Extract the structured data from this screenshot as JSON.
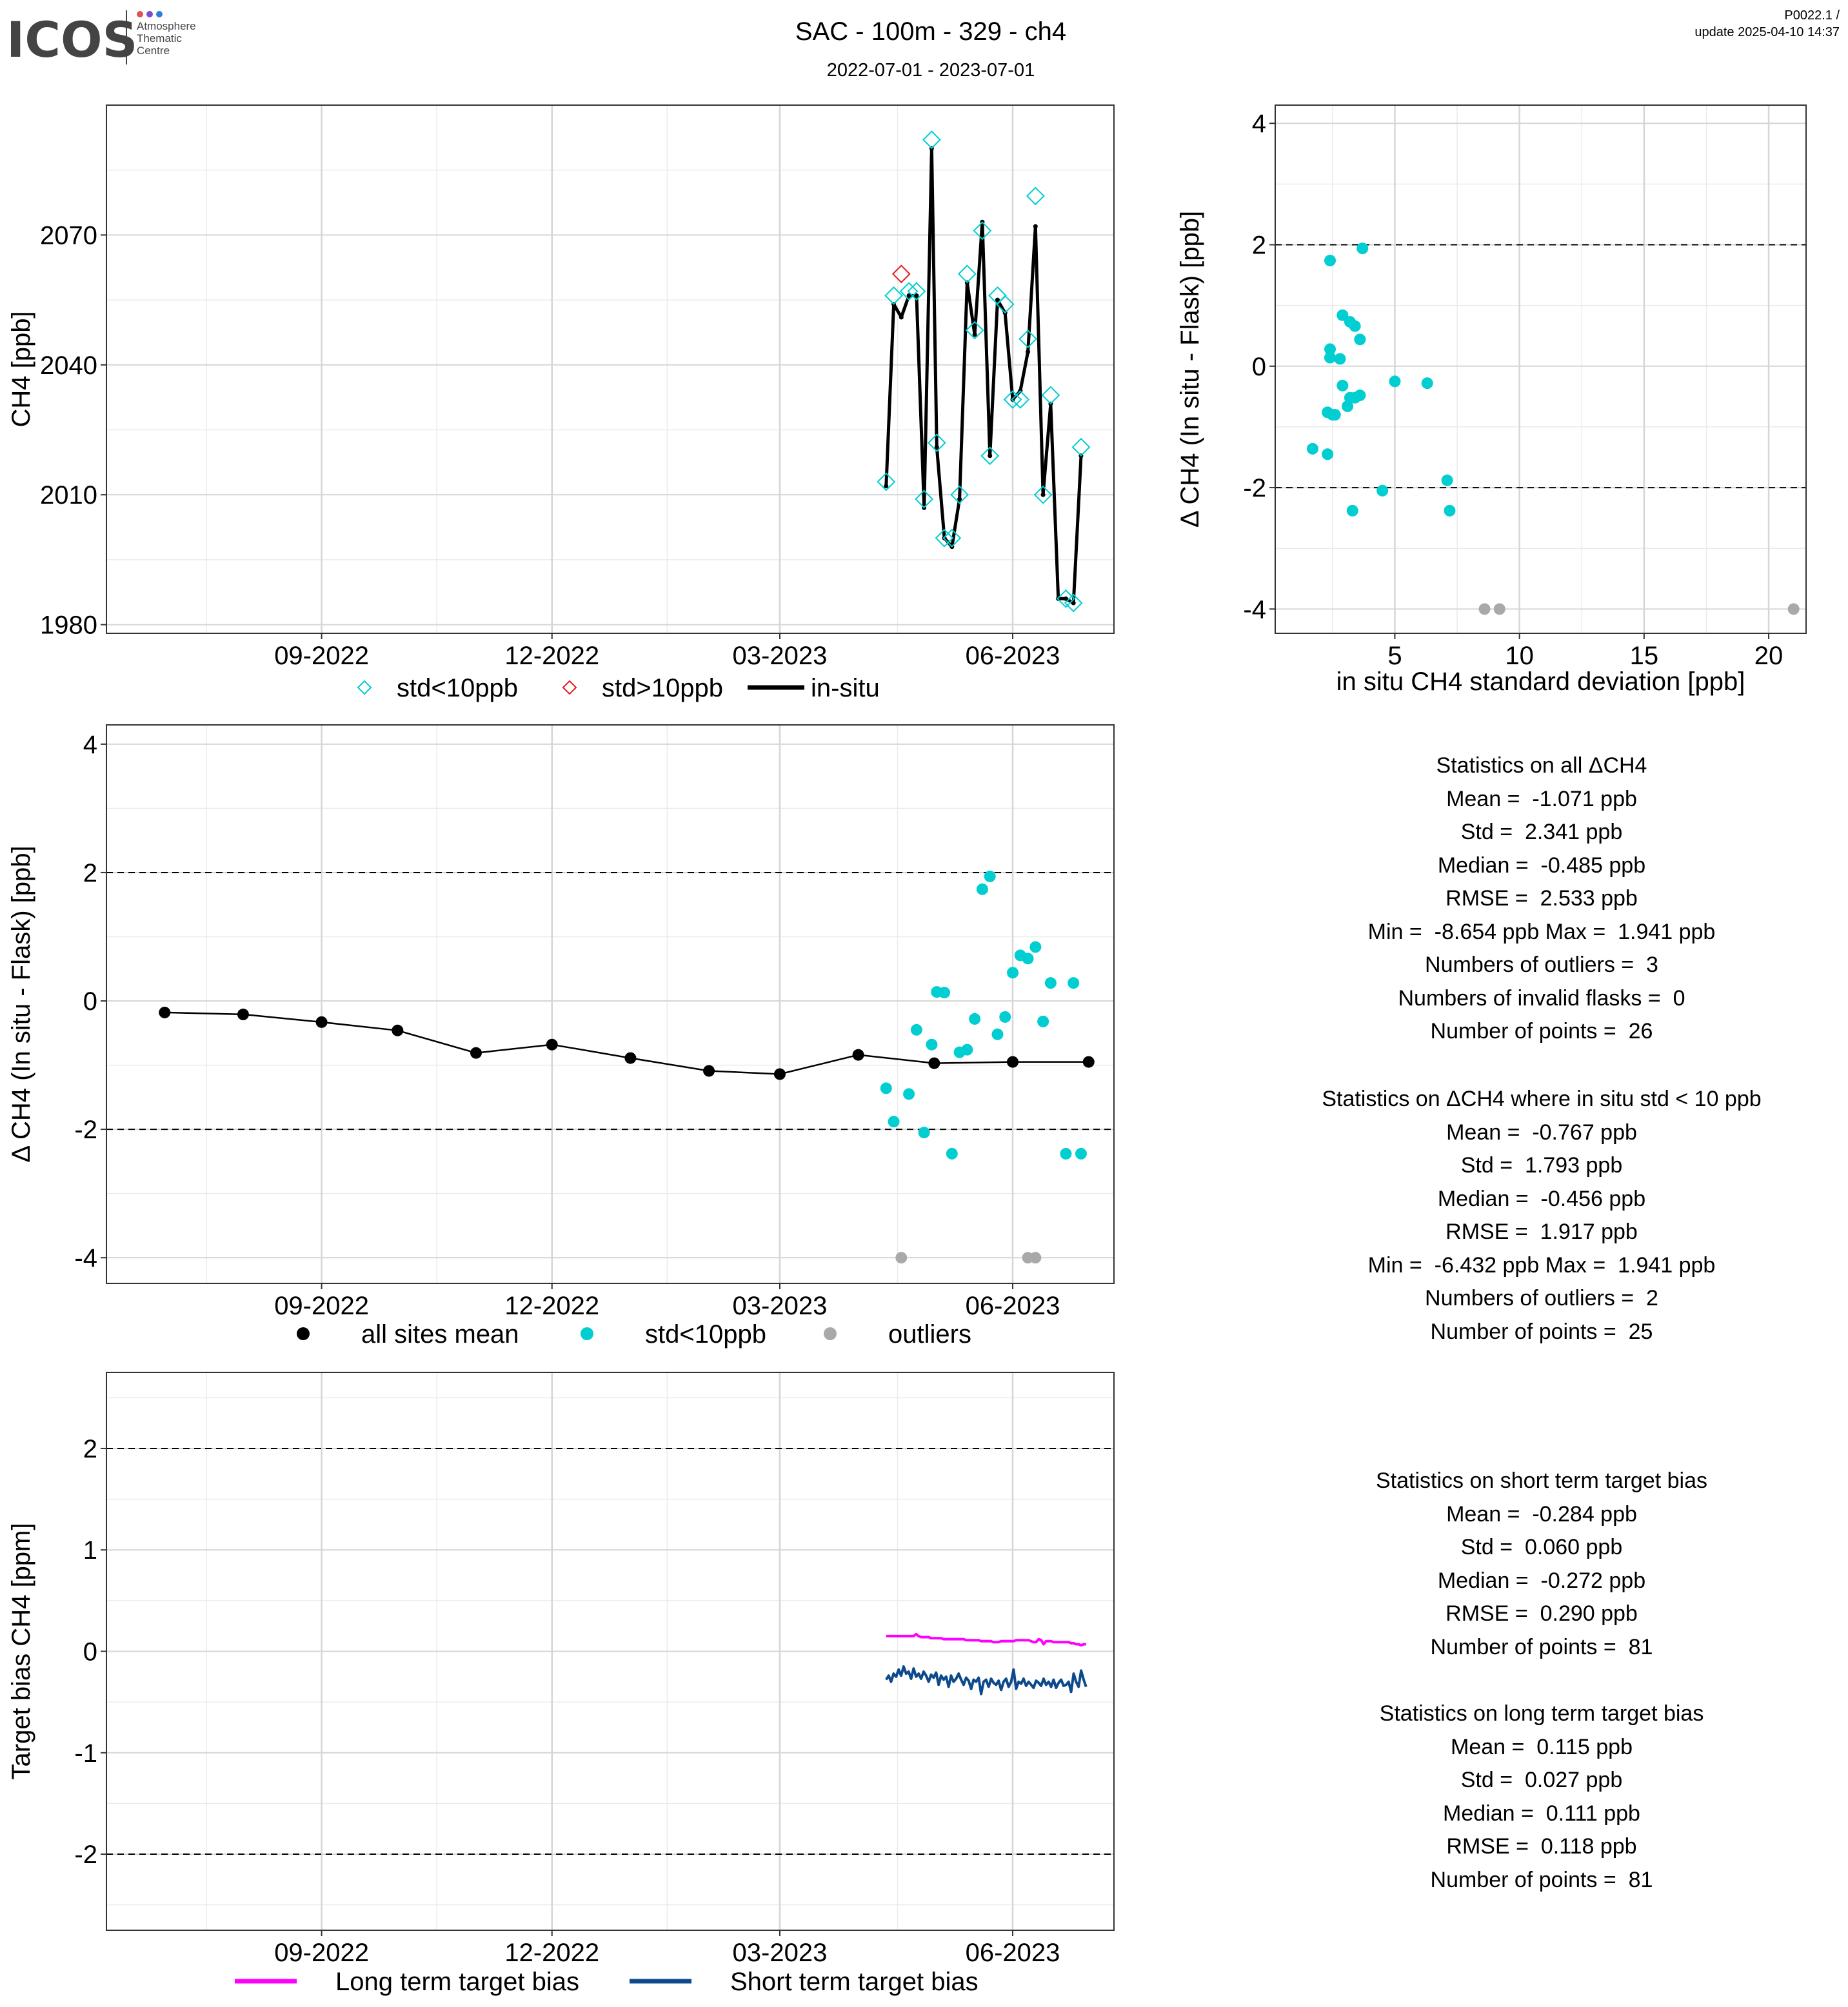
{
  "header": {
    "logo_text": "ICOS",
    "logo_sub": [
      "Atmosphere",
      "Thematic",
      "Centre"
    ],
    "title": "SAC - 100m - 329 - ch4",
    "subtitle": "2022-07-01 - 2023-07-01",
    "version": "P0022.1 /",
    "update": "update  2025-04-10 14:37"
  },
  "colors": {
    "cyan": "#00CED1",
    "red": "#E41A1C",
    "grey": "#A9A9A9",
    "magenta": "#FF00FF",
    "navy": "#0D4A8C",
    "black": "#000000"
  },
  "chart_data": [
    {
      "id": "timeseries",
      "type": "line",
      "ylabel": "CH4 [ppb]",
      "xlabel": "",
      "x_domain": [
        "2022-06-08",
        "2023-07-11"
      ],
      "ylim": [
        1978,
        2100
      ],
      "yticks": [
        1980,
        2010,
        2040,
        2070
      ],
      "xticks": [
        {
          "date": "2022-09-01",
          "label": "09-2022"
        },
        {
          "date": "2022-12-01",
          "label": "12-2022"
        },
        {
          "date": "2023-03-01",
          "label": "03-2023"
        },
        {
          "date": "2023-06-01",
          "label": "06-2023"
        }
      ],
      "grid": true,
      "legend": {
        "position": "bottom",
        "items": [
          {
            "label": "std<10ppb",
            "marker": "diamond",
            "color": "#00CED1"
          },
          {
            "label": "std>10ppb",
            "marker": "diamond",
            "color": "#E41A1C"
          },
          {
            "label": "in-situ",
            "marker": "line",
            "color": "#000000"
          }
        ]
      },
      "insitu": {
        "name": "in-situ",
        "x": [
          "2023-04-12",
          "2023-04-15",
          "2023-04-18",
          "2023-04-21",
          "2023-04-24",
          "2023-04-27",
          "2023-04-30",
          "2023-05-02",
          "2023-05-05",
          "2023-05-08",
          "2023-05-11",
          "2023-05-14",
          "2023-05-17",
          "2023-05-20",
          "2023-05-23",
          "2023-05-26",
          "2023-05-29",
          "2023-06-01",
          "2023-06-04",
          "2023-06-07",
          "2023-06-10",
          "2023-06-13",
          "2023-06-16",
          "2023-06-19",
          "2023-06-22",
          "2023-06-25",
          "2023-06-28"
        ],
        "y": [
          2012,
          2054,
          2051,
          2056,
          2056,
          2007,
          2090,
          2021,
          2000,
          1998,
          2009,
          2059,
          2047,
          2073,
          2019,
          2055,
          2052,
          2032,
          2034,
          2043,
          2072,
          2010,
          2031,
          1986,
          1986,
          1985,
          2019
        ]
      },
      "flask_ok": {
        "name": "std<10ppb",
        "x": [
          "2023-04-12",
          "2023-04-15",
          "2023-04-21",
          "2023-04-24",
          "2023-04-27",
          "2023-04-30",
          "2023-05-02",
          "2023-05-05",
          "2023-05-08",
          "2023-05-11",
          "2023-05-14",
          "2023-05-17",
          "2023-05-20",
          "2023-05-23",
          "2023-05-26",
          "2023-05-29",
          "2023-06-01",
          "2023-06-04",
          "2023-06-07",
          "2023-06-10",
          "2023-06-13",
          "2023-06-16",
          "2023-06-22",
          "2023-06-25",
          "2023-06-28"
        ],
        "y": [
          2013,
          2056,
          2057,
          2057,
          2009,
          2092,
          2022,
          2000,
          2000,
          2010,
          2061,
          2048,
          2071,
          2019,
          2056,
          2054,
          2032,
          2032,
          2046,
          2079,
          2010,
          2033,
          1986,
          1985,
          2021
        ]
      },
      "flask_bad": {
        "name": "std>10ppb",
        "x": [
          "2023-04-18"
        ],
        "y": [
          2061
        ]
      }
    },
    {
      "id": "scatter_std",
      "type": "scatter",
      "xlabel": "in situ CH4 standard deviation [ppb]",
      "ylabel": "Δ CH4 (In situ - Flask) [ppb]",
      "xlim": [
        0.2,
        21.5
      ],
      "ylim": [
        -4.4,
        4.3
      ],
      "xticks": [
        5,
        10,
        15,
        20
      ],
      "yticks": [
        -4,
        -2,
        0,
        2,
        4
      ],
      "hlines": [
        2,
        -2
      ],
      "grid": true,
      "points_ok": {
        "x": [
          2.4,
          3.7,
          2.9,
          3.2,
          3.4,
          2.4,
          3.6,
          2.8,
          2.4,
          2.5,
          2.9,
          5.0,
          6.3,
          3.6,
          3.4,
          3.1,
          2.3,
          2.6,
          1.7,
          2.3,
          3.3,
          4.5,
          7.1,
          7.2,
          3.2
        ],
        "y": [
          1.74,
          1.94,
          0.84,
          0.73,
          0.66,
          0.28,
          0.44,
          0.12,
          0.14,
          -0.8,
          -0.32,
          -0.25,
          -0.28,
          -0.48,
          -0.52,
          -0.66,
          -0.76,
          -0.8,
          -1.36,
          -1.45,
          -2.38,
          -2.05,
          -1.88,
          -2.38,
          -0.52
        ]
      },
      "points_outlier": {
        "x": [
          8.6,
          9.2,
          21.0
        ],
        "y": [
          -4,
          -4,
          -4
        ]
      }
    },
    {
      "id": "delta_time",
      "type": "scatter",
      "ylabel": "Δ CH4 (In situ - Flask) [ppb]",
      "xlabel": "",
      "x_domain": [
        "2022-06-08",
        "2023-07-11"
      ],
      "ylim": [
        -4.4,
        4.3
      ],
      "yticks": [
        -4,
        -2,
        0,
        2,
        4
      ],
      "hlines": [
        2,
        -2
      ],
      "xticks": [
        {
          "date": "2022-09-01",
          "label": "09-2022"
        },
        {
          "date": "2022-12-01",
          "label": "12-2022"
        },
        {
          "date": "2023-03-01",
          "label": "03-2023"
        },
        {
          "date": "2023-06-01",
          "label": "06-2023"
        }
      ],
      "grid": true,
      "legend": {
        "position": "bottom",
        "items": [
          {
            "label": "all sites mean",
            "marker": "dot",
            "color": "#000000"
          },
          {
            "label": "std<10ppb",
            "marker": "dot",
            "color": "#00CED1"
          },
          {
            "label": "outliers",
            "marker": "dot",
            "color": "#A9A9A9"
          }
        ]
      },
      "mean": {
        "name": "all sites mean",
        "x": [
          "2022-07-01",
          "2022-08-01",
          "2022-09-01",
          "2022-10-01",
          "2022-11-01",
          "2022-12-01",
          "2023-01-01",
          "2023-02-01",
          "2023-03-01",
          "2023-04-01",
          "2023-05-01",
          "2023-06-01",
          "2023-07-01"
        ],
        "y": [
          -0.18,
          -0.21,
          -0.33,
          -0.46,
          -0.81,
          -0.68,
          -0.89,
          -1.09,
          -1.14,
          -0.84,
          -0.97,
          -0.95,
          -0.95
        ]
      },
      "ok": {
        "name": "std<10ppb",
        "x": [
          "2023-04-12",
          "2023-04-15",
          "2023-04-21",
          "2023-04-24",
          "2023-04-27",
          "2023-04-30",
          "2023-05-02",
          "2023-05-05",
          "2023-05-08",
          "2023-05-11",
          "2023-05-14",
          "2023-05-17",
          "2023-05-20",
          "2023-05-23",
          "2023-05-26",
          "2023-05-29",
          "2023-06-01",
          "2023-06-04",
          "2023-06-07",
          "2023-06-10",
          "2023-06-13",
          "2023-06-16",
          "2023-06-22",
          "2023-06-25",
          "2023-06-28"
        ],
        "y": [
          -1.36,
          -1.88,
          -1.45,
          -0.45,
          -2.05,
          -0.68,
          0.14,
          0.13,
          -2.38,
          -0.8,
          -0.76,
          -0.28,
          1.74,
          1.94,
          -0.52,
          -0.25,
          0.44,
          0.71,
          0.66,
          0.84,
          -0.32,
          0.28,
          -2.38,
          0.28,
          -2.38
        ]
      },
      "outliers": {
        "name": "outliers",
        "x": [
          "2023-04-18",
          "2023-06-07",
          "2023-06-10"
        ],
        "y": [
          -4,
          -4,
          -4
        ]
      }
    },
    {
      "id": "target_bias",
      "type": "line",
      "ylabel": "Target bias CH4 [ppm]",
      "xlabel": "",
      "x_domain": [
        "2022-06-08",
        "2023-07-11"
      ],
      "ylim": [
        -2.75,
        2.75
      ],
      "yticks": [
        -2,
        -1,
        0,
        1,
        2
      ],
      "hlines": [
        2,
        -2
      ],
      "xticks": [
        {
          "date": "2022-09-01",
          "label": "09-2022"
        },
        {
          "date": "2022-12-01",
          "label": "12-2022"
        },
        {
          "date": "2023-03-01",
          "label": "03-2023"
        },
        {
          "date": "2023-06-01",
          "label": "06-2023"
        }
      ],
      "grid": true,
      "legend": {
        "position": "bottom",
        "items": [
          {
            "label": "Long term target bias",
            "marker": "line",
            "color": "#FF00FF"
          },
          {
            "label": "Short term target bias",
            "marker": "line",
            "color": "#0D4A8C"
          }
        ]
      },
      "long_term": {
        "name": "Long term target bias",
        "start": "2023-04-12",
        "end": "2023-06-30",
        "values": [
          0.15,
          0.15,
          0.15,
          0.15,
          0.15,
          0.15,
          0.15,
          0.15,
          0.15,
          0.15,
          0.15,
          0.15,
          0.17,
          0.15,
          0.14,
          0.14,
          0.14,
          0.14,
          0.13,
          0.13,
          0.13,
          0.13,
          0.13,
          0.12,
          0.12,
          0.12,
          0.12,
          0.12,
          0.12,
          0.12,
          0.12,
          0.12,
          0.11,
          0.11,
          0.11,
          0.11,
          0.11,
          0.11,
          0.1,
          0.1,
          0.1,
          0.1,
          0.1,
          0.09,
          0.09,
          0.09,
          0.1,
          0.1,
          0.1,
          0.1,
          0.1,
          0.1,
          0.11,
          0.11,
          0.11,
          0.11,
          0.11,
          0.11,
          0.1,
          0.09,
          0.09,
          0.12,
          0.11,
          0.07,
          0.1,
          0.1,
          0.1,
          0.09,
          0.09,
          0.09,
          0.09,
          0.09,
          0.09,
          0.09,
          0.08,
          0.08,
          0.07,
          0.07,
          0.06,
          0.07,
          0.07
        ]
      },
      "short_term": {
        "name": "Short term target bias",
        "start": "2023-04-12",
        "end": "2023-06-30",
        "values": [
          -0.28,
          -0.24,
          -0.3,
          -0.22,
          -0.25,
          -0.18,
          -0.24,
          -0.15,
          -0.22,
          -0.2,
          -0.27,
          -0.17,
          -0.25,
          -0.22,
          -0.27,
          -0.2,
          -0.24,
          -0.3,
          -0.23,
          -0.26,
          -0.21,
          -0.33,
          -0.24,
          -0.28,
          -0.25,
          -0.35,
          -0.24,
          -0.3,
          -0.27,
          -0.22,
          -0.28,
          -0.33,
          -0.26,
          -0.29,
          -0.37,
          -0.28,
          -0.3,
          -0.26,
          -0.42,
          -0.3,
          -0.28,
          -0.35,
          -0.27,
          -0.31,
          -0.33,
          -0.29,
          -0.38,
          -0.3,
          -0.27,
          -0.35,
          -0.3,
          -0.18,
          -0.37,
          -0.3,
          -0.32,
          -0.27,
          -0.34,
          -0.3,
          -0.33,
          -0.36,
          -0.29,
          -0.31,
          -0.34,
          -0.27,
          -0.33,
          -0.3,
          -0.35,
          -0.28,
          -0.36,
          -0.31,
          -0.28,
          -0.34,
          -0.33,
          -0.3,
          -0.4,
          -0.22,
          -0.3,
          -0.35,
          -0.19,
          -0.28,
          -0.35
        ]
      }
    }
  ],
  "stats": {
    "all": [
      "Statistics on all ΔCH4",
      "Mean =  -1.071 ppb",
      "Std =  2.341 ppb",
      "Median =  -0.485 ppb",
      "RMSE =  2.533 ppb",
      "Min =  -8.654 ppb Max =  1.941 ppb",
      "Numbers of outliers =  3",
      "Numbers of invalid flasks =  0",
      "Number of points =  26"
    ],
    "std10": [
      "Statistics on ΔCH4 where in situ std < 10 ppb",
      "Mean =  -0.767 ppb",
      "Std =  1.793 ppb",
      "Median =  -0.456 ppb",
      "RMSE =  1.917 ppb",
      "Min =  -6.432 ppb Max =  1.941 ppb",
      "Numbers of outliers =  2",
      "Number of points =  25"
    ],
    "short": [
      "Statistics on short term target bias",
      "Mean =  -0.284 ppb",
      "Std =  0.060 ppb",
      "Median =  -0.272 ppb",
      "RMSE =  0.290 ppb",
      "Number of points =  81"
    ],
    "long": [
      "Statistics on long term target bias",
      "Mean =  0.115 ppb",
      "Std =  0.027 ppb",
      "Median =  0.111 ppb",
      "RMSE =  0.118 ppb",
      "Number of points =  81"
    ]
  }
}
